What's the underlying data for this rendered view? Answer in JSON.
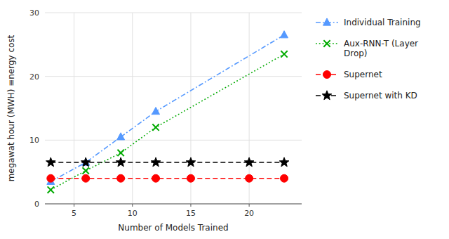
{
  "chart_data": {
    "type": "line",
    "xlabel": "Number of Models Trained",
    "ylabel": "megawat hour (MWH) ≡nergy cost",
    "xlim": [
      2.5,
      24.5
    ],
    "ylim": [
      0,
      30
    ],
    "xticks": [
      5,
      10,
      15,
      20
    ],
    "yticks": [
      0,
      10,
      20,
      30
    ],
    "grid": true,
    "legend": "right",
    "series": [
      {
        "name": "Individual Training",
        "color": "#5599ff",
        "marker": "triangle",
        "line_style": "dashdot",
        "x": [
          3,
          6,
          9,
          12,
          23
        ],
        "values": [
          3.5,
          6.5,
          10.5,
          14.5,
          26.5
        ]
      },
      {
        "name": "Aux-RNN-T (Layer\nDrop)",
        "color": "#00aa00",
        "marker": "x",
        "line_style": "dotted",
        "x": [
          3,
          6,
          9,
          12,
          23
        ],
        "values": [
          2.2,
          5.2,
          8.0,
          12.0,
          23.5
        ]
      },
      {
        "name": "Supernet",
        "color": "#ff0000",
        "marker": "circle",
        "line_style": "dashed",
        "x": [
          3,
          6,
          9,
          12,
          15,
          20,
          23
        ],
        "values": [
          4.0,
          4.0,
          4.0,
          4.0,
          4.0,
          4.0,
          4.0
        ]
      },
      {
        "name": "Supernet with KD",
        "color": "#000000",
        "marker": "star",
        "line_style": "dashed",
        "x": [
          3,
          6,
          9,
          12,
          15,
          20,
          23
        ],
        "values": [
          6.5,
          6.5,
          6.5,
          6.5,
          6.5,
          6.5,
          6.5
        ]
      }
    ]
  }
}
